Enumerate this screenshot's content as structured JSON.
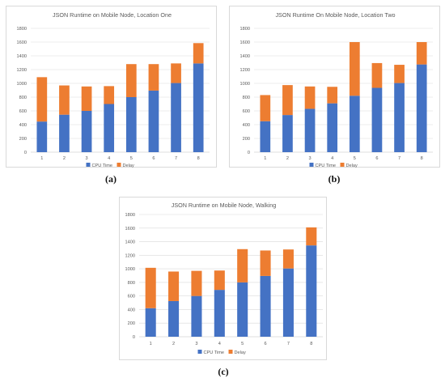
{
  "colors": {
    "cpu": "#4472C4",
    "delay": "#ED7D31",
    "grid": "#d9d9d9",
    "axis": "#bfbfbf",
    "text": "#595959"
  },
  "captions": [
    "(a)",
    "(b)",
    "(c)"
  ],
  "chart_data": [
    {
      "type": "bar",
      "stacked": true,
      "title": "JSON Runtime on Mobile Node, Location One",
      "categories": [
        "1",
        "2",
        "3",
        "4",
        "5",
        "6",
        "7",
        "8"
      ],
      "series": [
        {
          "name": "CPU Time",
          "values": [
            445,
            545,
            600,
            700,
            800,
            895,
            1005,
            1290
          ]
        },
        {
          "name": "Delay",
          "values": [
            645,
            425,
            355,
            260,
            480,
            385,
            285,
            295
          ]
        }
      ],
      "yticks": [
        "0",
        "200",
        "400",
        "600",
        "800",
        "1000",
        "1200",
        "1400",
        "1600",
        "1800"
      ],
      "ylim": [
        0,
        1800
      ],
      "grid": true,
      "legend": "bottom"
    },
    {
      "type": "bar",
      "stacked": true,
      "title": "JSON Runtime On Mobile Node, Location Two",
      "categories": [
        "1",
        "2",
        "3",
        "4",
        "5",
        "6",
        "7",
        "8"
      ],
      "series": [
        {
          "name": "CPU Time",
          "values": [
            450,
            540,
            630,
            710,
            820,
            935,
            1005,
            1275
          ]
        },
        {
          "name": "Delay",
          "values": [
            380,
            435,
            325,
            240,
            780,
            360,
            265,
            325
          ]
        }
      ],
      "yticks": [
        "0",
        "200",
        "400",
        "600",
        "800",
        "1000",
        "1200",
        "1400",
        "1600",
        "1800"
      ],
      "ylim": [
        0,
        1800
      ],
      "grid": true,
      "legend": "bottom"
    },
    {
      "type": "bar",
      "stacked": true,
      "title": "JSON Runtime on Mobile Node, Walking",
      "categories": [
        "1",
        "2",
        "3",
        "4",
        "5",
        "6",
        "7",
        "8"
      ],
      "series": [
        {
          "name": "CPU Time",
          "values": [
            420,
            525,
            600,
            690,
            800,
            895,
            1005,
            1345
          ]
        },
        {
          "name": "Delay",
          "values": [
            595,
            435,
            370,
            285,
            490,
            375,
            280,
            265
          ]
        }
      ],
      "yticks": [
        "0",
        "200",
        "400",
        "600",
        "800",
        "1000",
        "1200",
        "1400",
        "1600",
        "1800"
      ],
      "ylim": [
        0,
        1800
      ],
      "grid": true,
      "legend": "bottom"
    }
  ]
}
